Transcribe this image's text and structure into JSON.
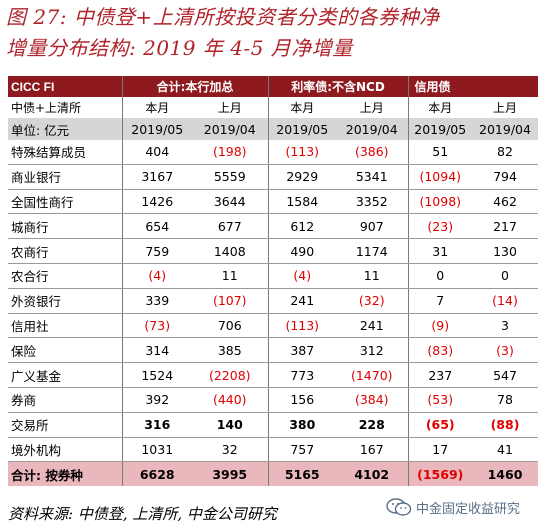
{
  "title": {
    "line1": "图 27:  中债登+上清所按投资者分类的各券种净",
    "line2": "增量分布结构:  2019 年 4-5 月净增量"
  },
  "table": {
    "header": [
      "CICC FI",
      "合计:本行加总",
      "",
      "利率债:不含NCD",
      "",
      "信用债",
      ""
    ],
    "subheader": [
      "中债+上清所",
      "本月",
      "上月",
      "本月",
      "上月",
      "本月",
      "上月"
    ],
    "unit_row": [
      "单位: 亿元",
      "2019/05",
      "2019/04",
      "2019/05",
      "2019/04",
      "2019/05",
      "2019/04"
    ],
    "rows": [
      {
        "label": "特殊结算成员",
        "values": [
          "404",
          "(198)",
          "(113)",
          "(386)",
          "51",
          "82"
        ],
        "bold": false
      },
      {
        "label": "商业银行",
        "values": [
          "3167",
          "5559",
          "2929",
          "5341",
          "(1094)",
          "794"
        ],
        "bold": false
      },
      {
        "label": "全国性商行",
        "values": [
          "1426",
          "3644",
          "1584",
          "3352",
          "(1098)",
          "462"
        ],
        "bold": false
      },
      {
        "label": "城商行",
        "values": [
          "654",
          "677",
          "612",
          "907",
          "(23)",
          "217"
        ],
        "bold": false
      },
      {
        "label": "农商行",
        "values": [
          "759",
          "1408",
          "490",
          "1174",
          "31",
          "130"
        ],
        "bold": false
      },
      {
        "label": "农合行",
        "values": [
          "(4)",
          "11",
          "(4)",
          "11",
          "0",
          "0"
        ],
        "bold": false
      },
      {
        "label": "外资银行",
        "values": [
          "339",
          "(107)",
          "241",
          "(32)",
          "7",
          "(14)"
        ],
        "bold": false
      },
      {
        "label": "信用社",
        "values": [
          "(73)",
          "706",
          "(113)",
          "241",
          "(9)",
          "3"
        ],
        "bold": false
      },
      {
        "label": "保险",
        "values": [
          "314",
          "385",
          "387",
          "312",
          "(83)",
          "(3)"
        ],
        "bold": false
      },
      {
        "label": "广义基金",
        "values": [
          "1524",
          "(2208)",
          "773",
          "(1470)",
          "237",
          "547"
        ],
        "bold": false
      },
      {
        "label": "券商",
        "values": [
          "392",
          "(440)",
          "156",
          "(384)",
          "(53)",
          "78"
        ],
        "bold": false
      },
      {
        "label": "交易所",
        "values": [
          "316",
          "140",
          "380",
          "228",
          "(65)",
          "(88)"
        ],
        "bold": true
      },
      {
        "label": "境外机构",
        "values": [
          "1031",
          "32",
          "757",
          "167",
          "17",
          "41"
        ],
        "bold": false
      }
    ],
    "total": {
      "label": "合计: 按券种",
      "values": [
        "6628",
        "3995",
        "5165",
        "4102",
        "(1569)",
        "1460"
      ]
    }
  },
  "source": "资料来源:  中债登,  上清所,  中金公司研究",
  "watermark": "中金固定收益研究",
  "colors": {
    "title": "#b0232a",
    "header_bg": "#8e1a20",
    "unit_bg": "#d6d6d6",
    "total_bg": "#eab7bc",
    "negative": "#e00000"
  }
}
